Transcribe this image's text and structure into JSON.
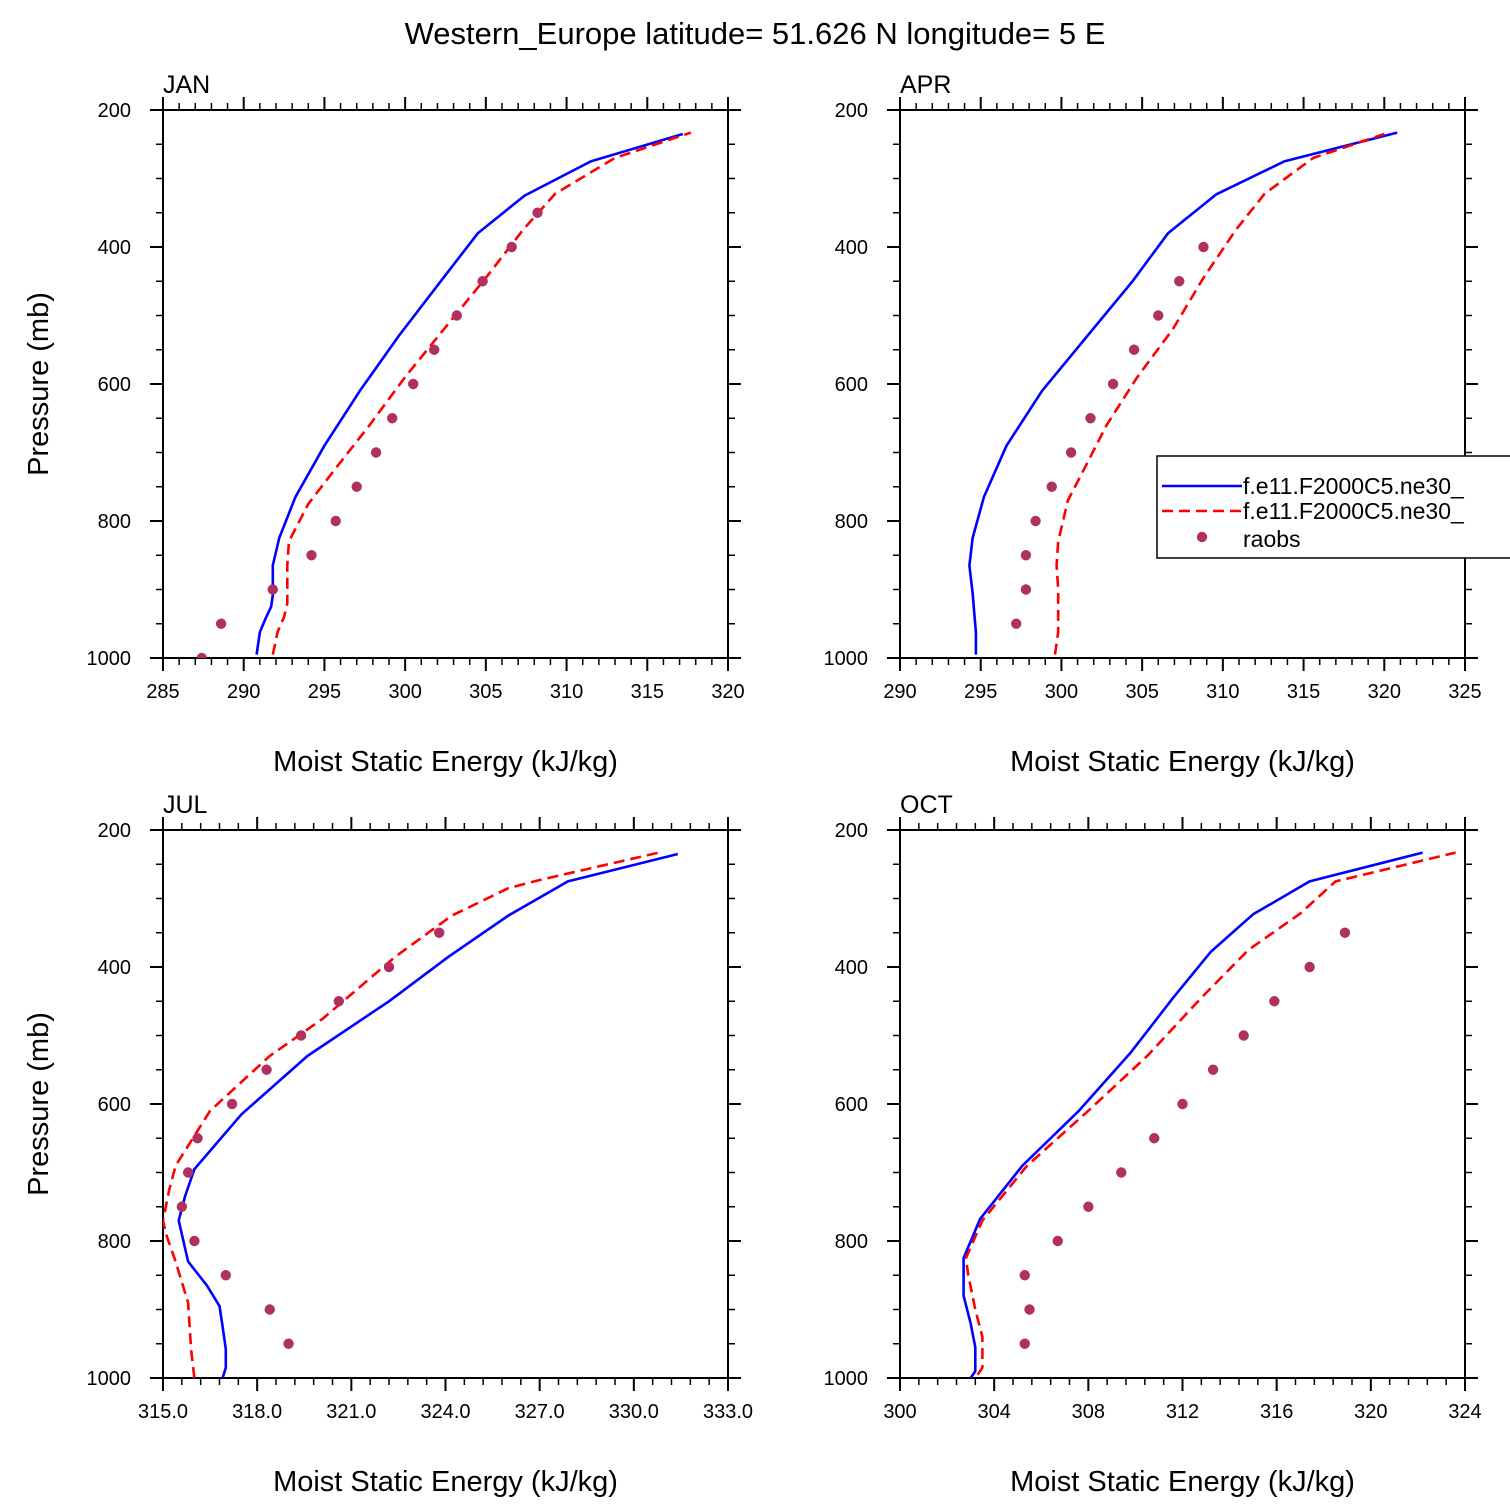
{
  "figure": {
    "title": "Western_Europe  latitude= 51.626 N longitude= 5 E"
  },
  "legend": {
    "entries": [
      {
        "label": "f.e11.F2000C5.ne30_",
        "color": "#0000ff",
        "style": "solid"
      },
      {
        "label": "f.e11.F2000C5.ne30_",
        "color": "#ff0000",
        "style": "dashed"
      },
      {
        "label": "raobs",
        "color": "#b03060",
        "style": "marker"
      }
    ]
  },
  "chart_data": [
    {
      "type": "line",
      "title": "JAN",
      "xlabel": "Moist Static Energy (kJ/kg)",
      "ylabel": "Pressure (mb)",
      "xlim": [
        285,
        320
      ],
      "ylim": [
        200,
        1000
      ],
      "y_inverted": true,
      "xticks": [
        285,
        290,
        295,
        300,
        305,
        310,
        315,
        320
      ],
      "xtick_labels": [
        "285",
        "290",
        "295",
        "300",
        "305",
        "310",
        "315",
        "320"
      ],
      "yticks": [
        200,
        400,
        600,
        800,
        1000
      ],
      "ytick_labels": [
        "200",
        "400",
        "600",
        "800",
        "1000"
      ],
      "series": [
        {
          "kind": "line",
          "color": "#0000ff",
          "dash": "solid",
          "points": [
            [
              290.8,
              995
            ],
            [
              291.0,
              962
            ],
            [
              291.4,
              940
            ],
            [
              291.7,
              925
            ],
            [
              291.8,
              908
            ],
            [
              291.8,
              865
            ],
            [
              292.2,
              825
            ],
            [
              293.2,
              765
            ],
            [
              295.0,
              690
            ],
            [
              297.2,
              610
            ],
            [
              299.6,
              530
            ],
            [
              302.2,
              450
            ],
            [
              304.5,
              380
            ],
            [
              307.4,
              325
            ],
            [
              311.5,
              275
            ],
            [
              317.2,
              235
            ]
          ]
        },
        {
          "kind": "line",
          "color": "#ff0000",
          "dash": "dashed",
          "points": [
            [
              291.8,
              995
            ],
            [
              292.1,
              962
            ],
            [
              292.5,
              940
            ],
            [
              292.7,
              920
            ],
            [
              292.7,
              865
            ],
            [
              292.8,
              830
            ],
            [
              294.0,
              775
            ],
            [
              295.8,
              720
            ],
            [
              297.8,
              660
            ],
            [
              300.0,
              590
            ],
            [
              302.4,
              520
            ],
            [
              305.0,
              445
            ],
            [
              307.3,
              375
            ],
            [
              309.3,
              322
            ],
            [
              313.0,
              270
            ],
            [
              317.7,
              233
            ]
          ]
        },
        {
          "kind": "points",
          "color": "#b03060",
          "points": [
            [
              287.4,
              1000
            ],
            [
              288.6,
              950
            ],
            [
              291.8,
              900
            ],
            [
              294.2,
              850
            ],
            [
              295.7,
              800
            ],
            [
              297.0,
              750
            ],
            [
              298.2,
              700
            ],
            [
              299.2,
              650
            ],
            [
              300.5,
              600
            ],
            [
              301.8,
              550
            ],
            [
              303.2,
              500
            ],
            [
              304.8,
              450
            ],
            [
              306.6,
              400
            ],
            [
              308.2,
              350
            ]
          ]
        }
      ]
    },
    {
      "type": "line",
      "title": "APR",
      "xlabel": "Moist Static Energy (kJ/kg)",
      "ylabel": "",
      "xlim": [
        290,
        325
      ],
      "ylim": [
        200,
        1000
      ],
      "y_inverted": true,
      "xticks": [
        290,
        295,
        300,
        305,
        310,
        315,
        320,
        325
      ],
      "xtick_labels": [
        "290",
        "295",
        "300",
        "305",
        "310",
        "315",
        "320",
        "325"
      ],
      "yticks": [
        200,
        400,
        600,
        800,
        1000
      ],
      "ytick_labels": [
        "200",
        "400",
        "600",
        "800",
        "1000"
      ],
      "series": [
        {
          "kind": "line",
          "color": "#0000ff",
          "dash": "solid",
          "points": [
            [
              294.7,
              995
            ],
            [
              294.7,
              962
            ],
            [
              294.6,
              935
            ],
            [
              294.5,
              905
            ],
            [
              294.3,
              865
            ],
            [
              294.5,
              825
            ],
            [
              295.2,
              765
            ],
            [
              296.6,
              690
            ],
            [
              298.8,
              610
            ],
            [
              301.6,
              530
            ],
            [
              304.4,
              450
            ],
            [
              306.6,
              380
            ],
            [
              309.6,
              323
            ],
            [
              313.8,
              275
            ],
            [
              320.8,
              233
            ]
          ]
        },
        {
          "kind": "line",
          "color": "#ff0000",
          "dash": "dashed",
          "points": [
            [
              299.6,
              995
            ],
            [
              299.8,
              962
            ],
            [
              299.8,
              900
            ],
            [
              299.7,
              865
            ],
            [
              299.8,
              830
            ],
            [
              300.4,
              770
            ],
            [
              301.5,
              720
            ],
            [
              302.8,
              660
            ],
            [
              304.7,
              590
            ],
            [
              306.9,
              520
            ],
            [
              308.8,
              445
            ],
            [
              310.8,
              375
            ],
            [
              312.6,
              322
            ],
            [
              315.6,
              270
            ],
            [
              320.0,
              235
            ]
          ]
        },
        {
          "kind": "points",
          "color": "#b03060",
          "points": [
            [
              297.2,
              950
            ],
            [
              297.8,
              900
            ],
            [
              297.8,
              850
            ],
            [
              298.4,
              800
            ],
            [
              299.4,
              750
            ],
            [
              300.6,
              700
            ],
            [
              301.8,
              650
            ],
            [
              303.2,
              600
            ],
            [
              304.5,
              550
            ],
            [
              306.0,
              500
            ],
            [
              307.3,
              450
            ],
            [
              308.8,
              400
            ]
          ]
        }
      ]
    },
    {
      "type": "line",
      "title": "JUL",
      "xlabel": "Moist Static Energy (kJ/kg)",
      "ylabel": "Pressure (mb)",
      "xlim": [
        315,
        333
      ],
      "ylim": [
        200,
        1000
      ],
      "y_inverted": true,
      "xticks": [
        315,
        318,
        321,
        324,
        327,
        330,
        333
      ],
      "xtick_labels": [
        "315.0",
        "318.0",
        "321.0",
        "324.0",
        "327.0",
        "330.0",
        "333.0"
      ],
      "yticks": [
        200,
        400,
        600,
        800,
        1000
      ],
      "ytick_labels": [
        "200",
        "400",
        "600",
        "800",
        "1000"
      ],
      "series": [
        {
          "kind": "line",
          "color": "#0000ff",
          "dash": "solid",
          "points": [
            [
              316.9,
              1000
            ],
            [
              317.0,
              985
            ],
            [
              317.0,
              958
            ],
            [
              316.9,
              925
            ],
            [
              316.8,
              895
            ],
            [
              316.4,
              865
            ],
            [
              315.8,
              830
            ],
            [
              315.5,
              770
            ],
            [
              315.7,
              735
            ],
            [
              316.0,
              695
            ],
            [
              317.5,
              615
            ],
            [
              319.6,
              530
            ],
            [
              322.2,
              450
            ],
            [
              324.1,
              385
            ],
            [
              326.0,
              325
            ],
            [
              327.9,
              275
            ],
            [
              331.4,
              235
            ]
          ]
        },
        {
          "kind": "line",
          "color": "#ff0000",
          "dash": "dashed",
          "points": [
            [
              316.0,
              1000
            ],
            [
              315.9,
              960
            ],
            [
              315.8,
              890
            ],
            [
              315.4,
              830
            ],
            [
              315.1,
              790
            ],
            [
              315.0,
              770
            ],
            [
              315.2,
              725
            ],
            [
              315.4,
              690
            ],
            [
              316.5,
              610
            ],
            [
              318.4,
              530
            ],
            [
              320.1,
              475
            ],
            [
              322.4,
              385
            ],
            [
              324.2,
              325
            ],
            [
              326.0,
              285
            ],
            [
              327.0,
              273
            ],
            [
              330.8,
              233
            ]
          ]
        },
        {
          "kind": "points",
          "color": "#b03060",
          "points": [
            [
              319.0,
              950
            ],
            [
              318.4,
              900
            ],
            [
              317.0,
              850
            ],
            [
              316.0,
              800
            ],
            [
              315.6,
              750
            ],
            [
              315.8,
              700
            ],
            [
              316.1,
              650
            ],
            [
              317.2,
              600
            ],
            [
              318.3,
              550
            ],
            [
              319.4,
              500
            ],
            [
              320.6,
              450
            ],
            [
              322.2,
              400
            ],
            [
              323.8,
              350
            ]
          ]
        }
      ]
    },
    {
      "type": "line",
      "title": "OCT",
      "xlabel": "Moist Static Energy (kJ/kg)",
      "ylabel": "",
      "xlim": [
        300,
        324
      ],
      "ylim": [
        200,
        1000
      ],
      "y_inverted": true,
      "xticks": [
        300,
        304,
        308,
        312,
        316,
        320,
        324
      ],
      "xtick_labels": [
        "300",
        "304",
        "308",
        "312",
        "316",
        "320",
        "324"
      ],
      "yticks": [
        200,
        400,
        600,
        800,
        1000
      ],
      "ytick_labels": [
        "200",
        "400",
        "600",
        "800",
        "1000"
      ],
      "series": [
        {
          "kind": "line",
          "color": "#0000ff",
          "dash": "solid",
          "points": [
            [
              303.0,
              1000
            ],
            [
              303.2,
              990
            ],
            [
              303.2,
              955
            ],
            [
              303.0,
              920
            ],
            [
              302.7,
              880
            ],
            [
              302.7,
              860
            ],
            [
              302.7,
              825
            ],
            [
              303.4,
              768
            ],
            [
              305.2,
              690
            ],
            [
              307.6,
              610
            ],
            [
              309.8,
              525
            ],
            [
              311.6,
              445
            ],
            [
              313.2,
              378
            ],
            [
              315.0,
              323
            ],
            [
              317.4,
              275
            ],
            [
              322.2,
              233
            ]
          ]
        },
        {
          "kind": "line",
          "color": "#ff0000",
          "dash": "dashed",
          "points": [
            [
              303.3,
              995
            ],
            [
              303.5,
              985
            ],
            [
              303.5,
              940
            ],
            [
              303.2,
              900
            ],
            [
              302.9,
              850
            ],
            [
              302.8,
              825
            ],
            [
              303.5,
              770
            ],
            [
              305.4,
              690
            ],
            [
              308.0,
              610
            ],
            [
              310.5,
              530
            ],
            [
              312.8,
              445
            ],
            [
              314.8,
              375
            ],
            [
              317.0,
              322
            ],
            [
              318.5,
              275
            ],
            [
              323.6,
              233
            ]
          ]
        },
        {
          "kind": "points",
          "color": "#b03060",
          "points": [
            [
              305.3,
              950
            ],
            [
              305.5,
              900
            ],
            [
              305.3,
              850
            ],
            [
              306.7,
              800
            ],
            [
              308.0,
              750
            ],
            [
              309.4,
              700
            ],
            [
              310.8,
              650
            ],
            [
              312.0,
              600
            ],
            [
              313.3,
              550
            ],
            [
              314.6,
              500
            ],
            [
              315.9,
              450
            ],
            [
              317.4,
              400
            ],
            [
              318.9,
              350
            ]
          ]
        }
      ]
    }
  ]
}
